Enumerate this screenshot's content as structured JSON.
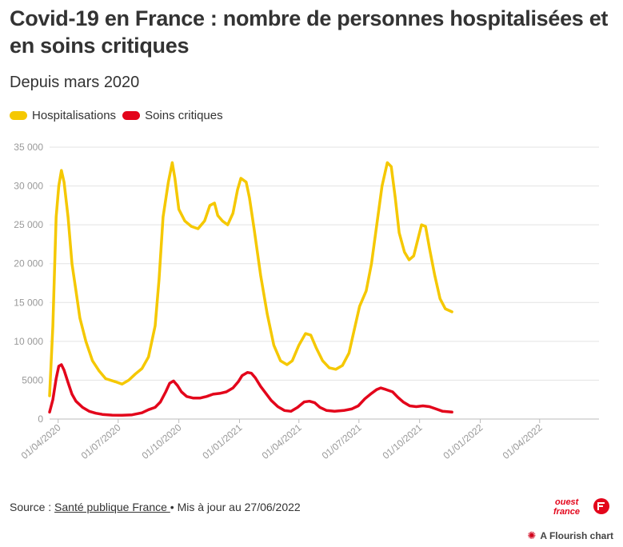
{
  "title": "Covid-19 en France : nombre de personnes hospitalisées et en soins critiques",
  "subtitle": "Depuis mars 2020",
  "legend": [
    {
      "label": "Hospitalisations",
      "color": "#f5c800"
    },
    {
      "label": "Soins critiques",
      "color": "#e3051b"
    }
  ],
  "footer": {
    "prefix": "Source : ",
    "source_link": "Santé publique France ",
    "suffix": "• Mis à jour au 27/06/2022"
  },
  "logo": {
    "line1": "ouest",
    "line2": "france"
  },
  "flourish": {
    "label": "A Flourish chart"
  },
  "chart_data": {
    "type": "line",
    "title": "Covid-19 en France : nombre de personnes hospitalisées et en soins critiques",
    "xlabel": "",
    "ylabel": "",
    "ylim": [
      0,
      35000
    ],
    "y_ticks": [
      0,
      5000,
      10000,
      15000,
      20000,
      25000,
      30000,
      35000
    ],
    "y_tick_labels": [
      "0",
      "5000",
      "10 000",
      "15 000",
      "20 000",
      "25 000",
      "30 000",
      "35 000"
    ],
    "x_ticks": [
      {
        "label": "01/04/2020",
        "day": 13
      },
      {
        "label": "01/07/2020",
        "day": 104
      },
      {
        "label": "01/10/2020",
        "day": 196
      },
      {
        "label": "01/01/2021",
        "day": 288
      },
      {
        "label": "01/04/2021",
        "day": 378
      },
      {
        "label": "01/07/2021",
        "day": 469
      },
      {
        "label": "01/10/2021",
        "day": 561
      },
      {
        "label": "01/01/2022",
        "day": 653
      },
      {
        "label": "01/04/2022",
        "day": 743
      }
    ],
    "x_range_days": [
      0,
      833
    ],
    "series": [
      {
        "name": "Hospitalisations",
        "color": "#f5c800",
        "points": [
          [
            0,
            3000
          ],
          [
            5,
            12000
          ],
          [
            10,
            26000
          ],
          [
            14,
            30000
          ],
          [
            18,
            32000
          ],
          [
            22,
            30500
          ],
          [
            28,
            26000
          ],
          [
            34,
            20000
          ],
          [
            40,
            16500
          ],
          [
            46,
            13000
          ],
          [
            55,
            10000
          ],
          [
            65,
            7500
          ],
          [
            75,
            6200
          ],
          [
            85,
            5200
          ],
          [
            100,
            4800
          ],
          [
            110,
            4500
          ],
          [
            120,
            5000
          ],
          [
            130,
            5800
          ],
          [
            140,
            6500
          ],
          [
            150,
            8000
          ],
          [
            160,
            12000
          ],
          [
            166,
            18000
          ],
          [
            172,
            26000
          ],
          [
            180,
            30500
          ],
          [
            186,
            33000
          ],
          [
            190,
            31000
          ],
          [
            196,
            27000
          ],
          [
            205,
            25500
          ],
          [
            215,
            24800
          ],
          [
            225,
            24500
          ],
          [
            235,
            25500
          ],
          [
            243,
            27500
          ],
          [
            250,
            27800
          ],
          [
            255,
            26200
          ],
          [
            262,
            25500
          ],
          [
            270,
            25000
          ],
          [
            278,
            26500
          ],
          [
            285,
            29500
          ],
          [
            290,
            31000
          ],
          [
            298,
            30500
          ],
          [
            303,
            28500
          ],
          [
            310,
            24500
          ],
          [
            320,
            18500
          ],
          [
            330,
            13500
          ],
          [
            340,
            9500
          ],
          [
            350,
            7500
          ],
          [
            360,
            7000
          ],
          [
            368,
            7500
          ],
          [
            378,
            9500
          ],
          [
            388,
            11000
          ],
          [
            396,
            10800
          ],
          [
            404,
            9200
          ],
          [
            414,
            7500
          ],
          [
            424,
            6600
          ],
          [
            434,
            6400
          ],
          [
            444,
            6900
          ],
          [
            454,
            8500
          ],
          [
            462,
            11500
          ],
          [
            470,
            14500
          ],
          [
            480,
            16500
          ],
          [
            488,
            20000
          ],
          [
            496,
            25000
          ],
          [
            504,
            30000
          ],
          [
            512,
            33000
          ],
          [
            518,
            32500
          ],
          [
            524,
            28500
          ],
          [
            530,
            24000
          ],
          [
            538,
            21500
          ],
          [
            545,
            20500
          ],
          [
            552,
            21000
          ],
          [
            558,
            23000
          ],
          [
            564,
            25000
          ],
          [
            570,
            24800
          ],
          [
            576,
            22000
          ],
          [
            584,
            18500
          ],
          [
            592,
            15500
          ],
          [
            600,
            14200
          ],
          [
            610,
            13800
          ]
        ]
      },
      {
        "name": "Soins critiques",
        "color": "#e3051b",
        "points": [
          [
            0,
            900
          ],
          [
            5,
            2500
          ],
          [
            10,
            5200
          ],
          [
            14,
            6800
          ],
          [
            18,
            7000
          ],
          [
            22,
            6300
          ],
          [
            28,
            4700
          ],
          [
            34,
            3200
          ],
          [
            40,
            2300
          ],
          [
            50,
            1500
          ],
          [
            60,
            1000
          ],
          [
            70,
            750
          ],
          [
            80,
            600
          ],
          [
            95,
            500
          ],
          [
            110,
            480
          ],
          [
            125,
            550
          ],
          [
            140,
            800
          ],
          [
            150,
            1200
          ],
          [
            160,
            1500
          ],
          [
            168,
            2200
          ],
          [
            176,
            3500
          ],
          [
            182,
            4600
          ],
          [
            188,
            4900
          ],
          [
            194,
            4300
          ],
          [
            200,
            3500
          ],
          [
            208,
            2900
          ],
          [
            218,
            2700
          ],
          [
            228,
            2700
          ],
          [
            238,
            2900
          ],
          [
            248,
            3200
          ],
          [
            258,
            3300
          ],
          [
            268,
            3500
          ],
          [
            278,
            4000
          ],
          [
            286,
            4800
          ],
          [
            292,
            5600
          ],
          [
            300,
            6000
          ],
          [
            306,
            5900
          ],
          [
            312,
            5300
          ],
          [
            320,
            4200
          ],
          [
            328,
            3300
          ],
          [
            336,
            2400
          ],
          [
            346,
            1600
          ],
          [
            356,
            1100
          ],
          [
            366,
            1000
          ],
          [
            376,
            1500
          ],
          [
            386,
            2200
          ],
          [
            394,
            2300
          ],
          [
            402,
            2100
          ],
          [
            410,
            1500
          ],
          [
            420,
            1100
          ],
          [
            432,
            1000
          ],
          [
            446,
            1100
          ],
          [
            458,
            1300
          ],
          [
            468,
            1700
          ],
          [
            478,
            2600
          ],
          [
            488,
            3300
          ],
          [
            496,
            3800
          ],
          [
            502,
            4000
          ],
          [
            510,
            3800
          ],
          [
            520,
            3500
          ],
          [
            528,
            2800
          ],
          [
            536,
            2200
          ],
          [
            546,
            1700
          ],
          [
            556,
            1600
          ],
          [
            566,
            1700
          ],
          [
            576,
            1600
          ],
          [
            586,
            1300
          ],
          [
            596,
            1000
          ],
          [
            610,
            900
          ]
        ]
      }
    ]
  }
}
